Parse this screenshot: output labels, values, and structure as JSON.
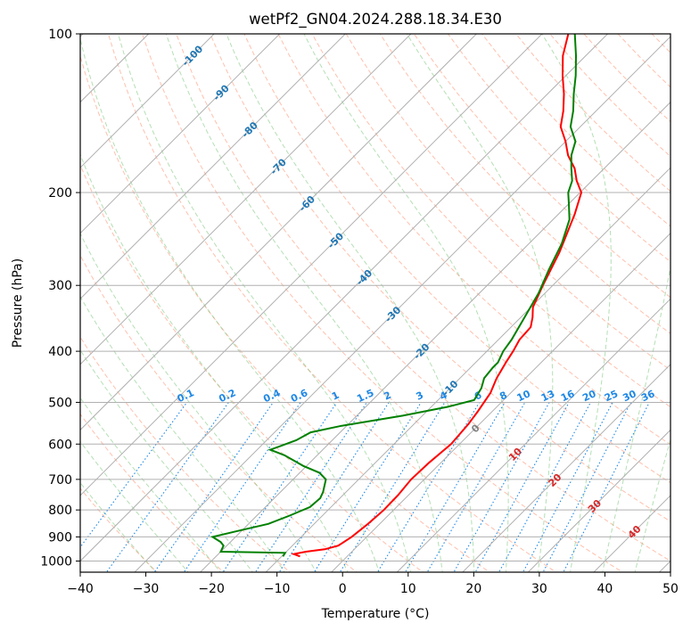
{
  "chart_data": {
    "type": "line",
    "title": "wetPf2_GN04.2024.288.18.34.E30",
    "xlabel": "Temperature (°C)",
    "ylabel": "Pressure (hPa)",
    "xlim": [
      -40,
      50
    ],
    "ylim": [
      1050,
      100
    ],
    "y_scale": "log",
    "grid": true,
    "xticks": [
      -40,
      -30,
      -20,
      -10,
      0,
      10,
      20,
      30,
      40,
      50
    ],
    "xtick_labels": [
      "−40",
      "−30",
      "−20",
      "−10",
      "0",
      "10",
      "20",
      "30",
      "40",
      "50"
    ],
    "yticks": [
      1000,
      900,
      800,
      700,
      600,
      500,
      400,
      300,
      200,
      100
    ],
    "ytick_labels": [
      "1000",
      "900",
      "800",
      "700",
      "600",
      "500",
      "400",
      "300",
      "200",
      "100"
    ],
    "isotherm_labels": [
      "-100",
      "-90",
      "-80",
      "-70",
      "-60",
      "-50",
      "-40",
      "-30",
      "-20",
      "-10",
      "0",
      "10",
      "20",
      "30",
      "40"
    ],
    "isotherm_values": [
      -100,
      -90,
      -80,
      -70,
      -60,
      -50,
      -40,
      -30,
      -20,
      -10,
      0,
      10,
      20,
      30,
      40
    ],
    "mixing_ratio_labels": [
      "0.1",
      "0.2",
      "0.4",
      "0.6",
      "1",
      "1.5",
      "2",
      "3",
      "4",
      "6",
      "8",
      "10",
      "13",
      "16",
      "20",
      "25",
      "30",
      "36"
    ],
    "mixing_ratio_values": [
      0.1,
      0.2,
      0.4,
      0.6,
      1,
      1.5,
      2,
      3,
      4,
      6,
      8,
      10,
      13,
      16,
      20,
      25,
      30,
      36
    ],
    "colors": {
      "temperature": "#ff0000",
      "dewpoint": "#008000",
      "isotherm": "#b0b0b0",
      "dry_adiabat": "#ff8c69",
      "moist_adiabat": "#6abf69",
      "mixing_ratio": "#1e88e5",
      "isotherm_label_cold": "#1f77b4",
      "isotherm_label_warm": "#d62728",
      "isotherm_label_zero": "#808080"
    },
    "series": [
      {
        "key": "temperature",
        "points": [
          [
            -7.2,
            980
          ],
          [
            -8.5,
            970
          ],
          [
            -7.0,
            960
          ],
          [
            -4.5,
            950
          ],
          [
            -3.0,
            935
          ],
          [
            -2.3,
            900
          ],
          [
            -1.8,
            850
          ],
          [
            -1.5,
            800
          ],
          [
            -1.6,
            750
          ],
          [
            -2.0,
            700
          ],
          [
            -1.8,
            650
          ],
          [
            -1.3,
            600
          ],
          [
            -1.7,
            550
          ],
          [
            -2.2,
            520
          ],
          [
            -3.1,
            480
          ],
          [
            -4.4,
            450
          ],
          [
            -5.4,
            420
          ],
          [
            -6.0,
            400
          ],
          [
            -6.8,
            380
          ],
          [
            -7.0,
            360
          ],
          [
            -8.2,
            345
          ],
          [
            -9.7,
            330
          ],
          [
            -11.5,
            300
          ],
          [
            -14.0,
            260
          ],
          [
            -17.5,
            220
          ],
          [
            -19.8,
            200
          ],
          [
            -22.3,
            190
          ],
          [
            -24.5,
            180
          ],
          [
            -27.5,
            170
          ],
          [
            -30.0,
            160
          ],
          [
            -33.0,
            150
          ],
          [
            -35.0,
            140
          ],
          [
            -37.5,
            130
          ],
          [
            -40.5,
            120
          ],
          [
            -43.5,
            110
          ],
          [
            -46.0,
            100
          ]
        ]
      },
      {
        "key": "dewpoint",
        "points": [
          [
            -9.8,
            980
          ],
          [
            -10.0,
            965
          ],
          [
            -20.0,
            960
          ],
          [
            -20.5,
            935
          ],
          [
            -21.5,
            920
          ],
          [
            -23.5,
            900
          ],
          [
            -21.0,
            880
          ],
          [
            -17.0,
            850
          ],
          [
            -15.0,
            820
          ],
          [
            -13.2,
            790
          ],
          [
            -13.0,
            760
          ],
          [
            -13.5,
            740
          ],
          [
            -15.0,
            700
          ],
          [
            -17.0,
            680
          ],
          [
            -20.5,
            660
          ],
          [
            -25.0,
            630
          ],
          [
            -28.0,
            615
          ],
          [
            -27.0,
            605
          ],
          [
            -25.5,
            590
          ],
          [
            -24.5,
            570
          ],
          [
            -21.0,
            555
          ],
          [
            -13.0,
            530
          ],
          [
            -7.5,
            510
          ],
          [
            -4.5,
            495
          ],
          [
            -5.2,
            470
          ],
          [
            -6.3,
            450
          ],
          [
            -6.6,
            430
          ],
          [
            -6.6,
            420
          ],
          [
            -7.5,
            400
          ],
          [
            -8.0,
            380
          ],
          [
            -9.2,
            350
          ],
          [
            -11.0,
            310
          ],
          [
            -13.0,
            280
          ],
          [
            -15.0,
            250
          ],
          [
            -17.5,
            225
          ],
          [
            -20.0,
            210
          ],
          [
            -21.8,
            200
          ],
          [
            -23.0,
            190
          ],
          [
            -25.0,
            180
          ],
          [
            -27.0,
            170
          ],
          [
            -28.5,
            160
          ],
          [
            -31.5,
            150
          ],
          [
            -33.5,
            140
          ],
          [
            -36.0,
            130
          ],
          [
            -38.5,
            120
          ],
          [
            -41.5,
            110
          ],
          [
            -45.0,
            100
          ]
        ]
      }
    ]
  }
}
